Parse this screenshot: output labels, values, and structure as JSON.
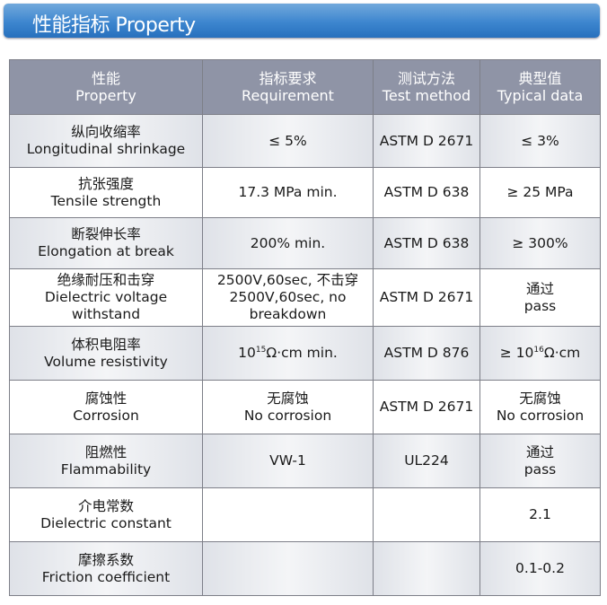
{
  "title": "性能指标 Property",
  "headers": [
    {
      "zh": "性能",
      "en": "Property"
    },
    {
      "zh": "指标要求",
      "en": "Requirement"
    },
    {
      "zh": "测试方法",
      "en": "Test method"
    },
    {
      "zh": "典型值",
      "en": "Typical data"
    }
  ],
  "rows": [
    {
      "zh": "纵向收缩率",
      "en": "Longitudinal shrinkage",
      "req": "≤ 5%",
      "method": "ASTM D 2671",
      "typical": "≤ 3%"
    },
    {
      "zh": "抗张强度",
      "en": "Tensile strength",
      "req": "17.3 MPa min.",
      "method": "ASTM D 638",
      "typical": "≥ 25 MPa"
    },
    {
      "zh": "断裂伸长率",
      "en": "Elongation at break",
      "req": "200% min.",
      "method": "ASTM D 638",
      "typical": "≥ 300%"
    },
    {
      "zh": "绝缘耐压和击穿",
      "en": "Dielectric voltage withstand",
      "req": "2500V,60sec, 不击穿",
      "req2": "2500V,60sec, no breakdown",
      "method": "ASTM D 2671",
      "typical": "通过",
      "typical2": "pass"
    },
    {
      "zh": "体积电阻率",
      "en": "Volume resistivity",
      "req_base": "10",
      "req_sup": "15",
      "req_suffix": "Ω·cm min.",
      "method": "ASTM D 876",
      "typ_base": "≥ 10",
      "typ_sup": "16",
      "typ_suffix": "Ω·cm"
    },
    {
      "zh": "腐蚀性",
      "en": "Corrosion",
      "req": "无腐蚀",
      "req2": "No corrosion",
      "method": "ASTM D 2671",
      "typical": "无腐蚀",
      "typical2": "No corrosion"
    },
    {
      "zh": "阻燃性",
      "en": "Flammability",
      "req": "VW-1",
      "method": "UL224",
      "typical": "通过",
      "typical2": "pass"
    },
    {
      "zh": "介电常数",
      "en": "Dielectric constant",
      "req": "",
      "method": "",
      "typical": "2.1"
    },
    {
      "zh": "摩擦系数",
      "en": "Friction coefficient",
      "req": "",
      "method": "",
      "typical": "0.1-0.2"
    }
  ]
}
